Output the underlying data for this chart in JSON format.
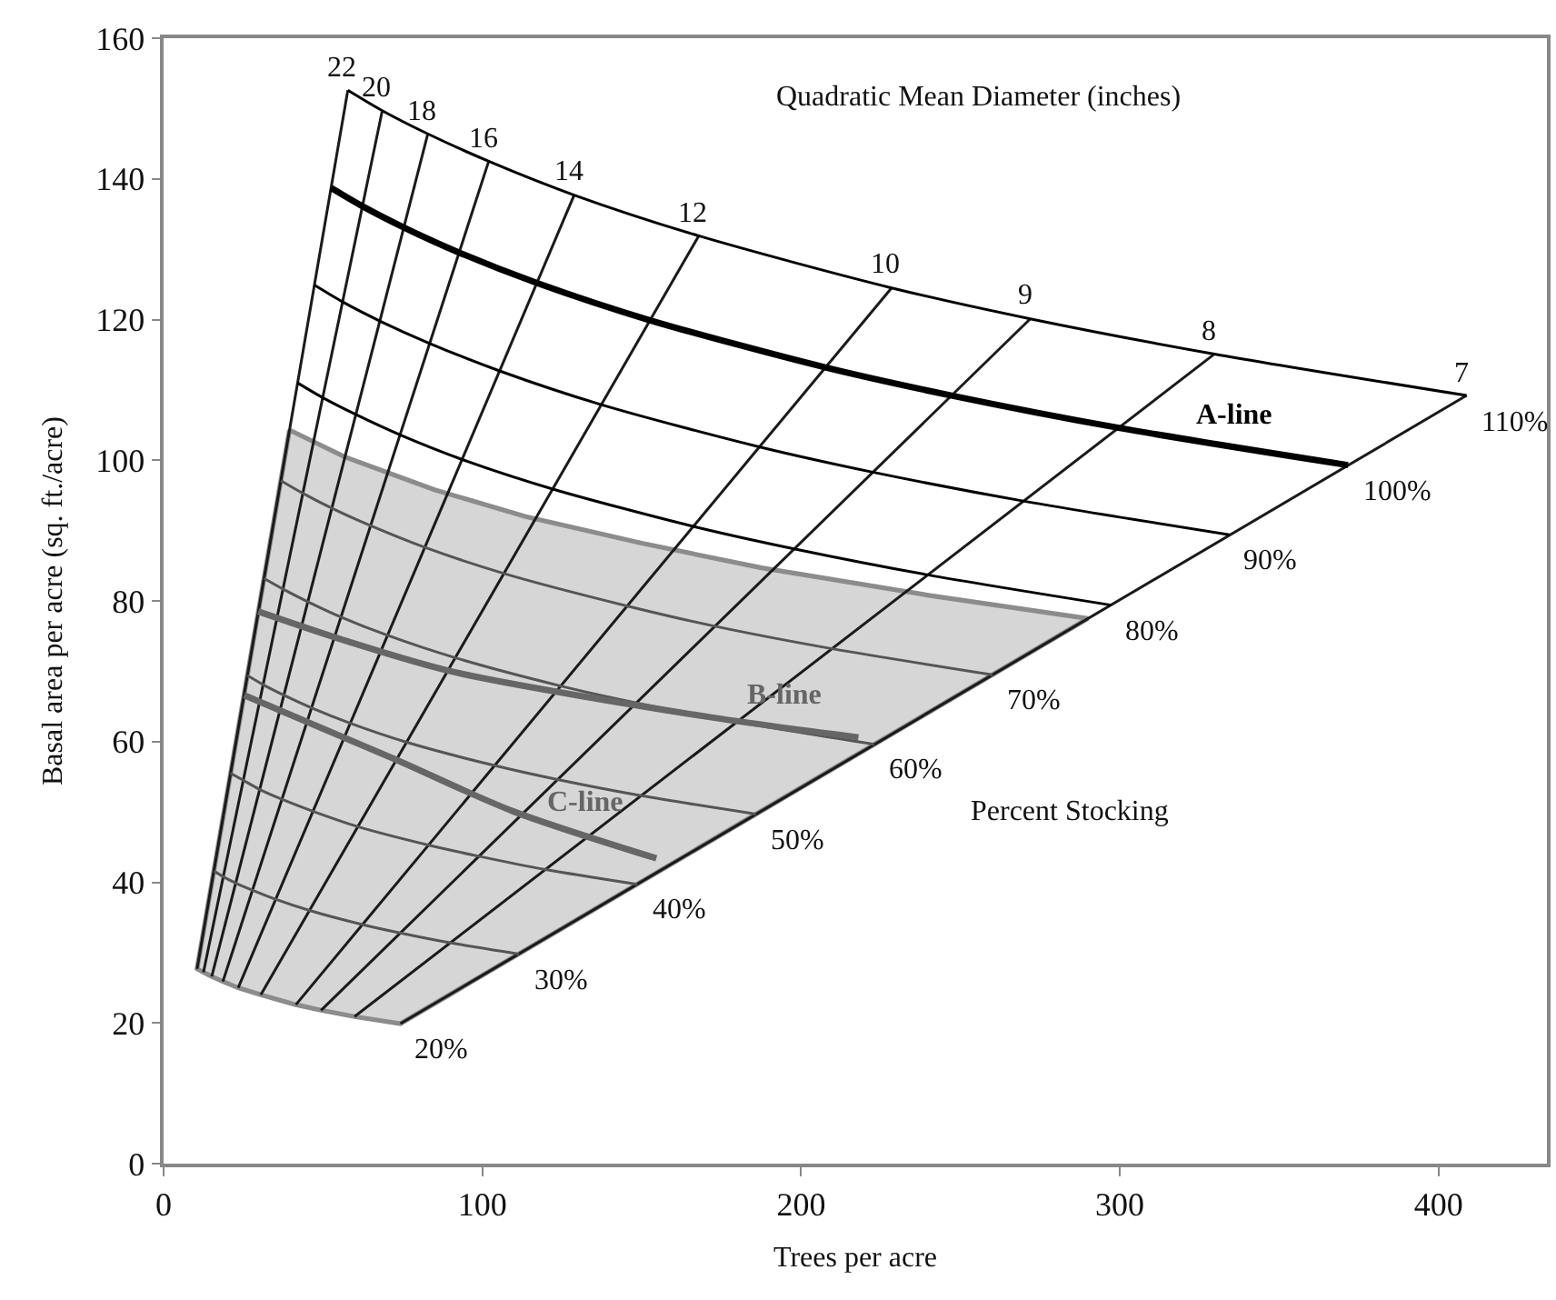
{
  "chart_data": {
    "type": "line",
    "xlabel": "Trees per acre",
    "ylabel": "Basal area per acre (sq. ft./acre)",
    "xlim": [
      0,
      434
    ],
    "xticks": [
      0,
      100,
      200,
      300,
      400
    ],
    "ylim": [
      0,
      160
    ],
    "yticks": [
      0,
      20,
      40,
      60,
      80,
      100,
      120,
      140,
      160
    ],
    "grid": false,
    "legend": false,
    "marker": "none",
    "line_style": "solid",
    "series": [
      {
        "color": "#1a1a1a",
        "x": [
          10.5,
          57.8
        ],
        "values": [
          27.7,
          152.6
        ]
      },
      {
        "color": "#1a1a1a",
        "x": [
          12.5,
          68.6
        ],
        "values": [
          27.2,
          149.7
        ]
      },
      {
        "color": "#1a1a1a",
        "x": [
          15.1,
          82.9
        ],
        "values": [
          26.6,
          146.4
        ]
      },
      {
        "color": "#1a1a1a",
        "x": [
          18.6,
          102.0
        ],
        "values": [
          25.9,
          142.5
        ]
      },
      {
        "color": "#1a1a1a",
        "x": [
          23.4,
          128.8
        ],
        "values": [
          25.0,
          137.7
        ]
      },
      {
        "color": "#1a1a1a",
        "x": [
          30.5,
          167.9
        ],
        "values": [
          24.0,
          131.9
        ]
      },
      {
        "color": "#1a1a1a",
        "x": [
          41.5,
          228.4
        ],
        "values": [
          22.6,
          124.5
        ]
      },
      {
        "color": "#1a1a1a",
        "x": [
          49.4,
          271.9
        ],
        "values": [
          21.8,
          120.1
        ]
      },
      {
        "color": "#1a1a1a",
        "x": [
          59.9,
          329.7
        ],
        "values": [
          20.9,
          115.1
        ]
      },
      {
        "color": "#1a1a1a",
        "x": [
          74.3,
          408.8
        ],
        "values": [
          19.9,
          109.2
        ]
      },
      {
        "color": "#000000",
        "x": [
          57.8,
          68.6,
          82.9,
          102.0,
          128.8,
          167.9,
          228.4,
          271.9,
          329.7,
          408.8
        ],
        "values": [
          152.6,
          149.7,
          146.4,
          142.5,
          137.7,
          131.9,
          124.5,
          120.1,
          115.1,
          109.2
        ]
      },
      {
        "color": "#000000",
        "name": "A-line",
        "x": [
          52.6,
          62.4,
          75.3,
          92.8,
          117.1,
          152.6,
          207.6,
          247.2,
          299.7,
          371.6
        ],
        "values": [
          138.7,
          136.1,
          133.1,
          129.5,
          125.2,
          119.9,
          113.2,
          109.2,
          104.6,
          99.3
        ]
      },
      {
        "color": "#000000",
        "x": [
          47.3,
          56.2,
          67.8,
          83.5,
          105.4,
          137.3,
          186.8,
          222.5,
          269.7,
          334.4
        ],
        "values": [
          124.9,
          122.5,
          119.8,
          116.6,
          112.7,
          107.9,
          101.9,
          98.3,
          94.2,
          89.4
        ]
      },
      {
        "color": "#000000",
        "x": [
          42.0,
          49.9,
          60.3,
          74.2,
          93.7,
          122.1,
          166.1,
          197.8,
          239.8,
          297.3
        ],
        "values": [
          111.0,
          108.9,
          106.5,
          103.6,
          100.1,
          95.9,
          90.6,
          87.4,
          83.7,
          79.4
        ]
      },
      {
        "color": "#555555",
        "x": [
          36.8,
          43.7,
          52.7,
          64.9,
          82.0,
          106.8,
          145.3,
          173.0,
          209.8,
          260.1
        ],
        "values": [
          97.1,
          95.3,
          93.2,
          90.7,
          87.6,
          83.9,
          79.3,
          76.4,
          73.2,
          69.5
        ]
      },
      {
        "color": "#555555",
        "x": [
          31.5,
          37.4,
          45.2,
          55.7,
          70.3,
          91.6,
          124.6,
          148.3,
          179.8,
          223.0
        ],
        "values": [
          83.2,
          81.7,
          79.9,
          77.7,
          75.1,
          71.9,
          67.9,
          65.5,
          62.8,
          59.6
        ]
      },
      {
        "color": "#555555",
        "x": [
          26.3,
          31.2,
          37.7,
          46.4,
          58.6,
          76.3,
          103.8,
          123.6,
          149.9,
          185.8
        ],
        "values": [
          69.4,
          68.1,
          66.6,
          64.8,
          62.6,
          59.9,
          56.6,
          54.6,
          52.3,
          49.7
        ]
      },
      {
        "color": "#555555",
        "x": [
          21.0,
          25.0,
          30.1,
          37.1,
          46.8,
          61.0,
          83.0,
          98.9,
          119.9,
          148.6
        ],
        "values": [
          55.5,
          54.5,
          53.2,
          51.8,
          50.1,
          47.9,
          45.3,
          43.7,
          41.8,
          39.7
        ]
      },
      {
        "color": "#555555",
        "x": [
          15.8,
          18.7,
          22.6,
          27.8,
          35.1,
          45.8,
          62.3,
          74.2,
          89.9,
          111.5
        ],
        "values": [
          41.6,
          40.8,
          39.9,
          38.9,
          37.6,
          36.0,
          34.0,
          32.8,
          31.4,
          29.8
        ]
      },
      {
        "color": "#666666",
        "name": "B-line",
        "x": [
          29.7,
          56.7,
          91,
          171,
          218
        ],
        "values": [
          78.5,
          74.4,
          69.9,
          63.5,
          60.6
        ]
      },
      {
        "color": "#666666",
        "name": "C-line",
        "x": [
          25.3,
          72,
          109.6,
          154.6
        ],
        "values": [
          66.6,
          57.6,
          50.1,
          43.4
        ]
      },
      {
        "type": "area",
        "color": "#8c8c8c",
        "x": [
          39.5,
          56.7,
          85,
          113.6,
          150,
          187.6,
          240,
          290,
          74.3,
          59.9,
          49.4,
          41.5,
          30.5,
          23.4,
          18.6,
          15.1,
          12.5,
          10.5,
          39.5
        ],
        "values": [
          104.3,
          100.5,
          95.8,
          92.0,
          88.2,
          84.7,
          80.8,
          77.5,
          19.9,
          20.9,
          21.8,
          22.6,
          24.0,
          25.0,
          25.9,
          26.6,
          27.2,
          27.7,
          104.3
        ]
      }
    ],
    "annotations": [
      "Quadratic Mean Diameter (inches)",
      "Percent Stocking",
      {
        "text": "22",
        "x": 57.8,
        "y": 152.6
      },
      {
        "text": "20",
        "x": 68.6,
        "y": 149.7
      },
      {
        "text": "18",
        "x": 82.9,
        "y": 146.4
      },
      {
        "text": "16",
        "x": 102.0,
        "y": 142.5
      },
      {
        "text": "14",
        "x": 128.8,
        "y": 137.7
      },
      {
        "text": "12",
        "x": 167.9,
        "y": 131.9
      },
      {
        "text": "10",
        "x": 228.4,
        "y": 124.5
      },
      {
        "text": "9",
        "x": 271.9,
        "y": 120.1
      },
      {
        "text": "8",
        "x": 329.7,
        "y": 115.1
      },
      {
        "text": "7",
        "x": 408.8,
        "y": 109.2
      },
      {
        "text": "110%",
        "x": 408.8,
        "y": 109.2
      },
      {
        "text": "100%",
        "x": 371.6,
        "y": 99.3
      },
      {
        "text": "90%",
        "x": 334.4,
        "y": 89.4
      },
      {
        "text": "80%",
        "x": 297.3,
        "y": 79.4
      },
      {
        "text": "70%",
        "x": 260.1,
        "y": 69.5
      },
      {
        "text": "60%",
        "x": 223.0,
        "y": 59.6
      },
      {
        "text": "50%",
        "x": 185.8,
        "y": 49.7
      },
      {
        "text": "40%",
        "x": 148.6,
        "y": 39.7
      },
      {
        "text": "30%",
        "x": 111.5,
        "y": 29.8
      },
      {
        "text": "20%",
        "x": 74.3,
        "y": 19.9
      }
    ]
  }
}
